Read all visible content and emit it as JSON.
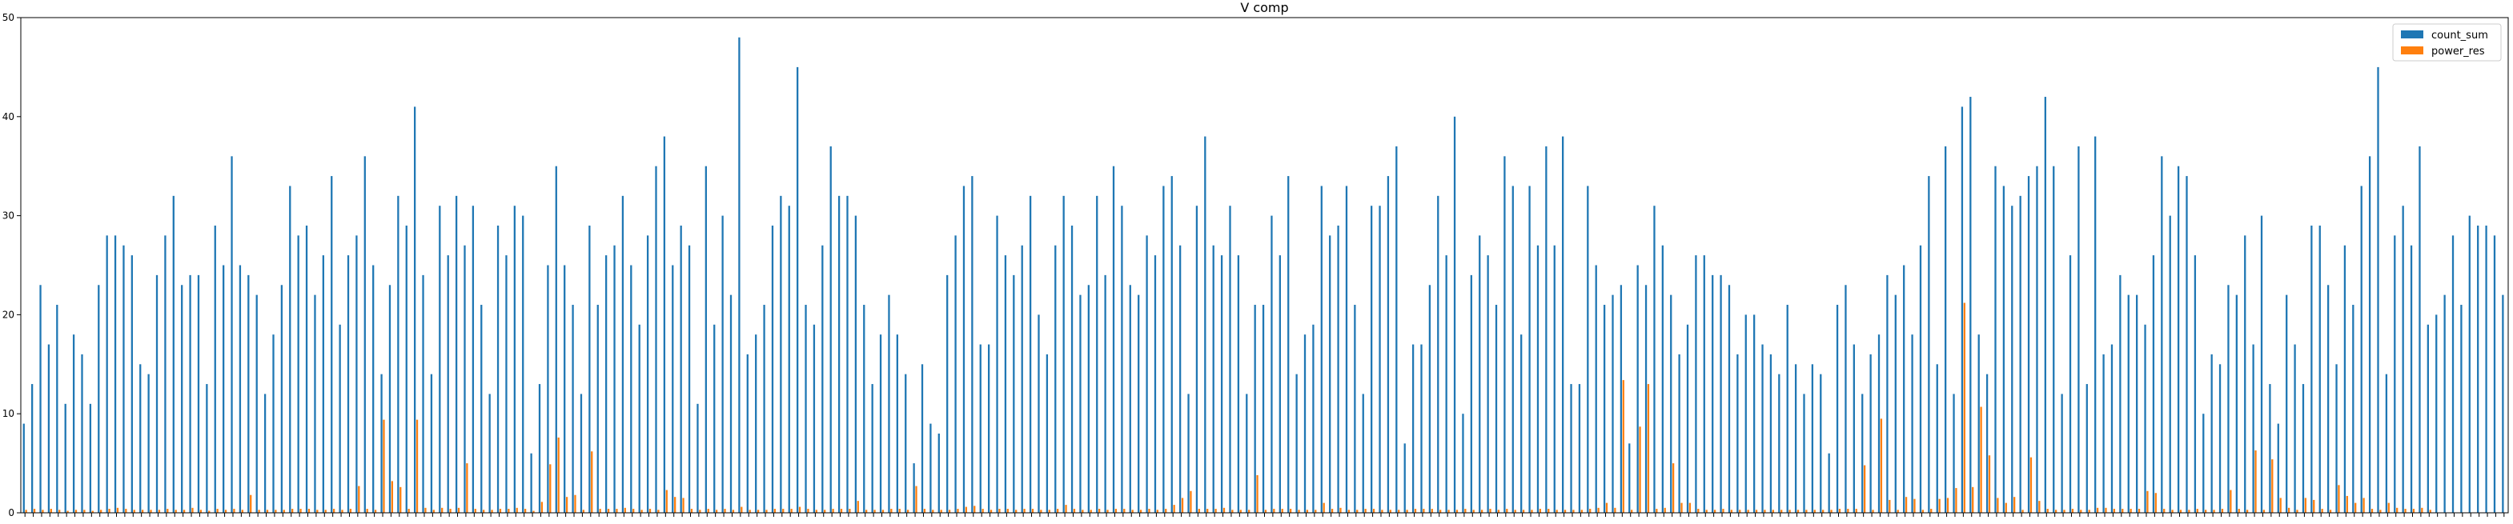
{
  "chart_data": {
    "type": "bar",
    "title": "V comp",
    "xlabel": "",
    "ylabel": "",
    "ylim": [
      0,
      50
    ],
    "yticks": [
      0,
      10,
      20,
      30,
      40,
      50
    ],
    "grid": false,
    "legend": "top-right",
    "series": [
      {
        "name": "count_sum",
        "color": "#1f77b4",
        "values": [
          9,
          13,
          23,
          17,
          21,
          11,
          18,
          16,
          11,
          23,
          28,
          28,
          27,
          26,
          15,
          14,
          24,
          28,
          32,
          23,
          24,
          24,
          13,
          29,
          25,
          36,
          25,
          24,
          22,
          12,
          18,
          23,
          33,
          28,
          29,
          22,
          26,
          34,
          19,
          26,
          28,
          36,
          25,
          14,
          23,
          32,
          29,
          41,
          24,
          14,
          31,
          26,
          32,
          27,
          31,
          21,
          12,
          29,
          26,
          31,
          30,
          6,
          13,
          25,
          35,
          25,
          21,
          12,
          29,
          21,
          26,
          27,
          32,
          25,
          19,
          28,
          35,
          38,
          25,
          29,
          27,
          11,
          35,
          19,
          30,
          22,
          48,
          16,
          18,
          21,
          29,
          32,
          31,
          45,
          21,
          19,
          27,
          37,
          32,
          32,
          30,
          21,
          13,
          18,
          22,
          18,
          14,
          5,
          15,
          9,
          8,
          24,
          28,
          33,
          34,
          17,
          17,
          30,
          26,
          24,
          27,
          32,
          20,
          16,
          27,
          32,
          29,
          22,
          23,
          32,
          24,
          35,
          31,
          23,
          22,
          28,
          26,
          33,
          34,
          27,
          12,
          31,
          38,
          27,
          26,
          31,
          26,
          12,
          21,
          21,
          30,
          26,
          34,
          14,
          18,
          19,
          33,
          28,
          29,
          33,
          21,
          12,
          31,
          31,
          34,
          37,
          7,
          17,
          17,
          23,
          32,
          26,
          40,
          10,
          24,
          28,
          26,
          21,
          36,
          33,
          18,
          33,
          27,
          37,
          27,
          38,
          13,
          13,
          33,
          25,
          21,
          22,
          23,
          7,
          25,
          23,
          31,
          27,
          22,
          16,
          19,
          26,
          26,
          24,
          24,
          23,
          16,
          20,
          20,
          17,
          16,
          14,
          21,
          15,
          12,
          15,
          14,
          6,
          21,
          23,
          17,
          12,
          16,
          18,
          24,
          22,
          25,
          18,
          27,
          34,
          15,
          37,
          12,
          41,
          42,
          18,
          14,
          35,
          33,
          31,
          32,
          34,
          35,
          42,
          35,
          12,
          26,
          37,
          13,
          38,
          16,
          17,
          24,
          22,
          22,
          19,
          26,
          36,
          30,
          35,
          34,
          26,
          10,
          16,
          15,
          23,
          22,
          28,
          17,
          30,
          13,
          9,
          22,
          17,
          13,
          29,
          29,
          23,
          15,
          27,
          21,
          33,
          36,
          45,
          14,
          28,
          31,
          27,
          37,
          19,
          20,
          22,
          28,
          21,
          30,
          29,
          29,
          28,
          22
        ]
      },
      {
        "name": "power_res",
        "color": "#ff7f0e",
        "values": [
          0.3,
          0.4,
          0.3,
          0.4,
          0.3,
          0.2,
          0.3,
          0.3,
          0.2,
          0.3,
          0.4,
          0.5,
          0.4,
          0.3,
          0.3,
          0.3,
          0.3,
          0.4,
          0.3,
          0.3,
          0.5,
          0.3,
          0.2,
          0.4,
          0.3,
          0.4,
          0.3,
          1.8,
          0.3,
          0.3,
          0.3,
          0.3,
          0.4,
          0.4,
          0.4,
          0.3,
          0.3,
          0.4,
          0.3,
          0.4,
          2.7,
          0.4,
          0.3,
          9.4,
          3.2,
          2.6,
          0.4,
          9.4,
          0.5,
          0.3,
          0.5,
          0.4,
          0.5,
          5.0,
          0.4,
          0.3,
          0.3,
          0.4,
          0.4,
          0.5,
          0.4,
          0.2,
          1.1,
          4.9,
          7.6,
          1.6,
          1.8,
          0.3,
          6.2,
          0.4,
          0.4,
          0.4,
          0.5,
          0.4,
          0.3,
          0.4,
          0.3,
          2.3,
          1.6,
          1.5,
          0.4,
          0.3,
          0.4,
          0.3,
          0.4,
          0.3,
          0.6,
          0.3,
          0.3,
          0.3,
          0.4,
          0.4,
          0.4,
          0.6,
          0.4,
          0.3,
          0.3,
          0.4,
          0.4,
          0.4,
          1.2,
          0.3,
          0.3,
          0.3,
          0.4,
          0.4,
          0.3,
          2.7,
          0.4,
          0.3,
          0.3,
          0.3,
          0.4,
          0.6,
          0.7,
          0.4,
          0.3,
          0.4,
          0.4,
          0.3,
          0.4,
          0.4,
          0.3,
          0.3,
          0.4,
          0.8,
          0.4,
          0.3,
          0.3,
          0.4,
          0.3,
          0.4,
          0.4,
          0.3,
          0.3,
          0.4,
          0.3,
          0.4,
          0.8,
          1.5,
          2.2,
          0.4,
          0.4,
          0.4,
          0.5,
          0.3,
          0.3,
          0.3,
          3.8,
          0.3,
          0.4,
          0.4,
          0.4,
          0.3,
          0.3,
          0.3,
          1.0,
          0.4,
          0.5,
          0.3,
          0.3,
          0.4,
          0.4,
          0.3,
          0.3,
          0.3,
          0.3,
          0.4,
          0.4,
          0.4,
          0.3,
          0.3,
          0.3,
          0.4,
          0.3,
          0.3,
          0.4,
          0.3,
          0.4,
          0.3,
          0.3,
          0.3,
          0.4,
          0.4,
          0.3,
          0.3,
          0.3,
          0.3,
          0.4,
          0.5,
          1.0,
          0.5,
          13.4,
          0.3,
          8.7,
          13.0,
          0.4,
          0.5,
          5.0,
          1.0,
          1.0,
          0.4,
          0.3,
          0.3,
          0.4,
          0.3,
          0.3,
          0.3,
          0.3,
          0.3,
          0.3,
          0.3,
          0.3,
          0.3,
          0.3,
          0.3,
          0.3,
          0.3,
          0.4,
          0.4,
          0.4,
          4.8,
          0.3,
          9.5,
          1.3,
          0.3,
          1.6,
          1.4,
          0.3,
          0.4,
          1.4,
          1.5,
          2.5,
          21.2,
          2.6,
          10.7,
          5.8,
          1.5,
          1.0,
          1.6,
          0.3,
          5.6,
          1.2,
          0.4,
          0.3,
          0.3,
          0.4,
          0.3,
          0.3,
          0.5,
          0.5,
          0.4,
          0.4,
          0.4,
          0.4,
          2.2,
          2.0,
          0.4,
          0.3,
          0.3,
          0.3,
          0.4,
          0.3,
          0.3,
          0.4,
          2.3,
          0.4,
          0.3,
          6.3,
          0.3,
          5.4,
          1.5,
          0.5,
          0.3,
          1.5,
          1.3,
          0.4,
          0.3,
          2.8,
          1.7,
          1.0,
          1.5,
          0.4,
          0.3,
          1.0,
          0.5,
          0.4,
          0.4,
          0.5,
          0.3
        ]
      }
    ]
  }
}
